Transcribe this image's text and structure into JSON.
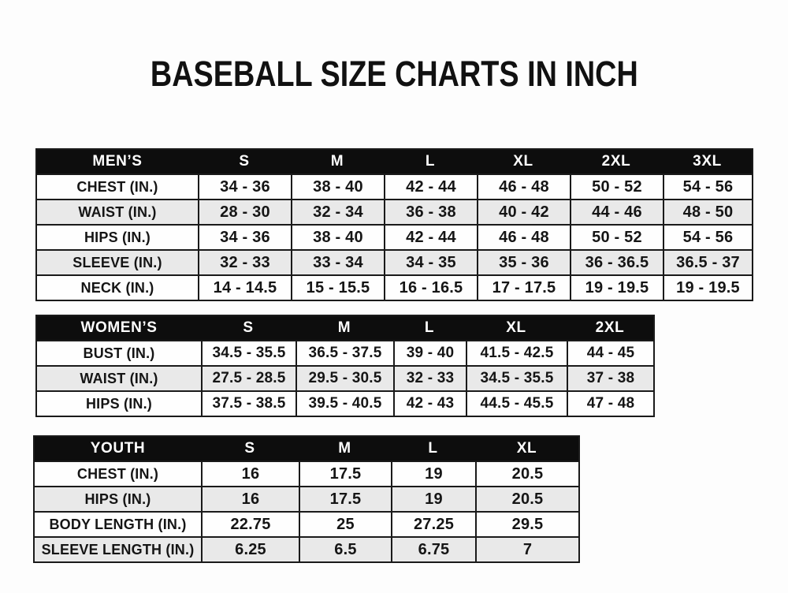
{
  "page_title": "BASEBALL SIZE CHARTS IN INCH",
  "colors": {
    "page_bg": "#fdfdfd",
    "header_bg": "#0d0d0d",
    "header_text": "#ffffff",
    "alt_bg": "#e9e9e9",
    "border": "#1a1a1a",
    "text": "#151515"
  },
  "chart_data": [
    {
      "type": "table",
      "name": "mens-size-chart",
      "columns": [
        "MEN’S",
        "S",
        "M",
        "L",
        "XL",
        "2XL",
        "3XL"
      ],
      "rows": [
        [
          "CHEST (IN.)",
          "34 - 36",
          "38 - 40",
          "42 - 44",
          "46 - 48",
          "50 - 52",
          "54 - 56"
        ],
        [
          "WAIST (IN.)",
          "28 - 30",
          "32 - 34",
          "36 - 38",
          "40 - 42",
          "44 - 46",
          "48 - 50"
        ],
        [
          "HIPS (IN.)",
          "34 - 36",
          "38 - 40",
          "42 - 44",
          "46 - 48",
          "50 - 52",
          "54 - 56"
        ],
        [
          "SLEEVE (IN.)",
          "32 - 33",
          "33 - 34",
          "34 - 35",
          "35 - 36",
          "36 - 36.5",
          "36.5 - 37"
        ],
        [
          "NECK (IN.)",
          "14 - 14.5",
          "15 - 15.5",
          "16 - 16.5",
          "17 - 17.5",
          "19 - 19.5",
          "19 - 19.5"
        ]
      ]
    },
    {
      "type": "table",
      "name": "womens-size-chart",
      "columns": [
        "WOMEN’S",
        "S",
        "M",
        "L",
        "XL",
        "2XL"
      ],
      "rows": [
        [
          "BUST (IN.)",
          "34.5 - 35.5",
          "36.5 - 37.5",
          "39 - 40",
          "41.5 - 42.5",
          "44 - 45"
        ],
        [
          "WAIST (IN.)",
          "27.5 - 28.5",
          "29.5 - 30.5",
          "32 - 33",
          "34.5 - 35.5",
          "37 - 38"
        ],
        [
          "HIPS (IN.)",
          "37.5 - 38.5",
          "39.5 - 40.5",
          "42 - 43",
          "44.5 - 45.5",
          "47 - 48"
        ]
      ]
    },
    {
      "type": "table",
      "name": "youth-size-chart",
      "columns": [
        "YOUTH",
        "S",
        "M",
        "L",
        "XL"
      ],
      "rows": [
        [
          "CHEST (IN.)",
          "16",
          "17.5",
          "19",
          "20.5"
        ],
        [
          "HIPS (IN.)",
          "16",
          "17.5",
          "19",
          "20.5"
        ],
        [
          "BODY LENGTH (IN.)",
          "22.75",
          "25",
          "27.25",
          "29.5"
        ],
        [
          "SLEEVE LENGTH (IN.)",
          "6.25",
          "6.5",
          "6.75",
          "7"
        ]
      ]
    }
  ]
}
